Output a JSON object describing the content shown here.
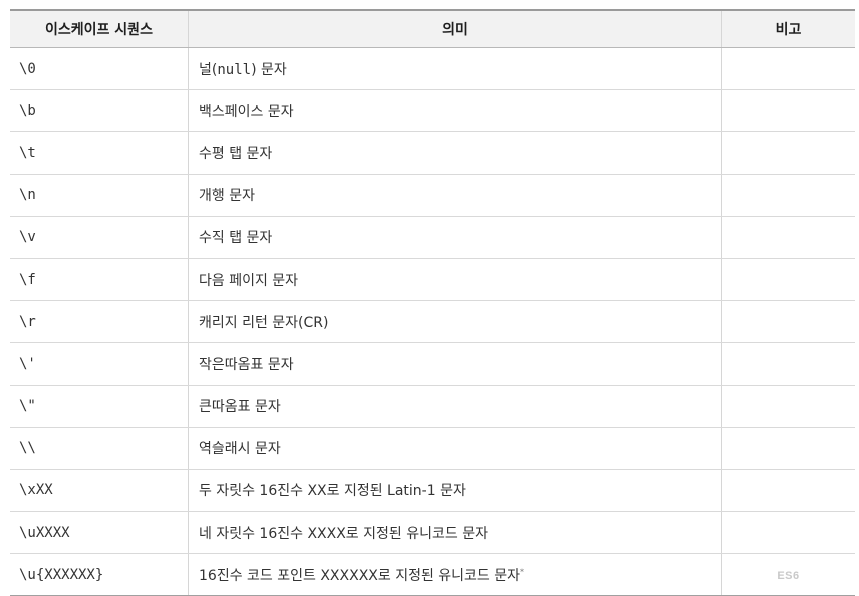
{
  "header": {
    "col1": "이스케이프 시퀀스",
    "col2": "의미",
    "col3": "비고"
  },
  "rows": [
    {
      "seq": "\\0",
      "meaning_pre": "널(",
      "meaning_code": "null",
      "meaning_post": ") 문자"
    },
    {
      "seq": "\\b",
      "meaning": "백스페이스 문자"
    },
    {
      "seq": "\\t",
      "meaning": "수평 탭 문자"
    },
    {
      "seq": "\\n",
      "meaning": "개행 문자"
    },
    {
      "seq": "\\v",
      "meaning": "수직 탭 문자"
    },
    {
      "seq": "\\f",
      "meaning": "다음 페이지 문자"
    },
    {
      "seq": "\\r",
      "meaning": "캐리지 리턴 문자(CR)"
    },
    {
      "seq": "\\'",
      "meaning": "작은따옴표 문자"
    },
    {
      "seq": "\\\"",
      "meaning": "큰따옴표 문자"
    },
    {
      "seq": "\\\\",
      "meaning": "역슬래시 문자"
    },
    {
      "seq": "\\xXX",
      "meaning": "두 자릿수 16진수 XX로 지정된 Latin-1 문자"
    },
    {
      "seq": "\\uXXXX",
      "meaning": "네 자릿수 16진수 XXXX로 지정된 유니코드 문자"
    },
    {
      "seq": "\\u{XXXXXX}",
      "meaning": "16진수 코드 포인트 XXXXXX로 지정된 유니코드 문자",
      "footnote": "*",
      "note": "ES6"
    }
  ]
}
